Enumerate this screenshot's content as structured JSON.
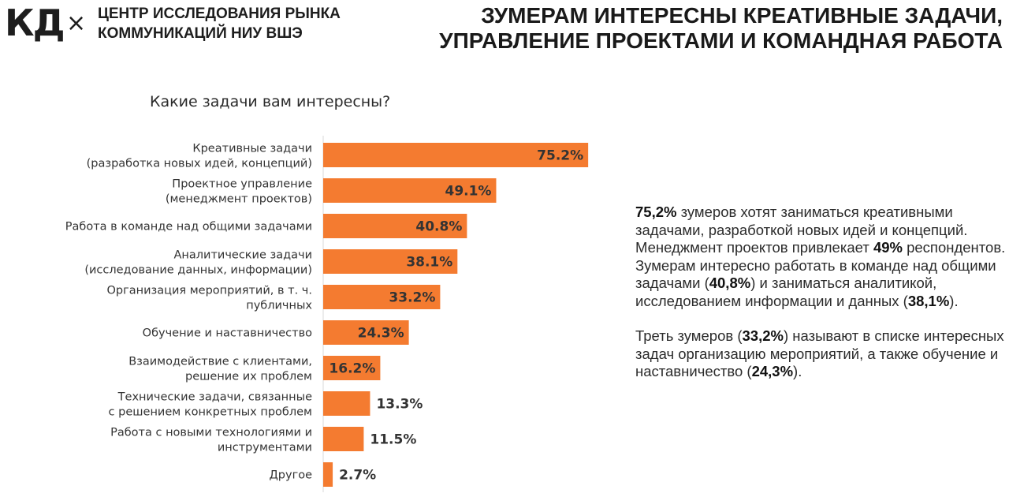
{
  "header": {
    "logo": "КД",
    "cross": "×",
    "org_line1": "ЦЕНТР ИССЛЕДОВАНИЯ РЫНКА",
    "org_line2": "КОММУНИКАЦИЙ НИУ ВШЭ",
    "title_line1": "ЗУМЕРАМ ИНТЕРЕСНЫ КРЕАТИВНЫЕ ЗАДАЧИ,",
    "title_line2": "УПРАВЛЕНИЕ ПРОЕКТАМИ И КОМАНДНАЯ РАБОТА"
  },
  "colors": {
    "bar": "#f47b30",
    "axis": "#d9d9d9",
    "text": "#333333"
  },
  "chart_data": {
    "type": "bar",
    "orientation": "horizontal",
    "title": "Какие задачи вам интересны?",
    "xlabel": "",
    "ylabel": "",
    "xlim": [
      0,
      100
    ],
    "categories": [
      [
        "Креативные задачи",
        "(разработка новых идей, концепций)"
      ],
      [
        "Проектное управление",
        "(менеджмент проектов)"
      ],
      [
        "Работа в команде над общими задачами"
      ],
      [
        "Аналитические задачи",
        "(исследование данных, информации)"
      ],
      [
        "Организация мероприятий, в т. ч.",
        "публичных"
      ],
      [
        "Обучение и наставничество"
      ],
      [
        "Взаимодействие с клиентами,",
        "решение их проблем"
      ],
      [
        "Технические задачи, связанные",
        "с решением конкретных проблем"
      ],
      [
        "Работа с новыми технологиями и",
        "инструментами"
      ],
      [
        "Другое"
      ]
    ],
    "values": [
      75.2,
      49.1,
      40.8,
      38.1,
      33.2,
      24.3,
      16.2,
      13.3,
      11.5,
      2.7
    ],
    "value_labels": [
      "75.2%",
      "49.1%",
      "40.8%",
      "38.1%",
      "33.2%",
      "24.3%",
      "16.2%",
      "13.3%",
      "11.5%",
      "2.7%"
    ]
  },
  "summary": {
    "p1": [
      {
        "t": "75,2%",
        "b": true
      },
      {
        "t": " зумеров хотят заниматься креативными задачами, разработкой новых идей и концепций. Менеджмент проектов привлекает ",
        "b": false
      },
      {
        "t": "49%",
        "b": true
      },
      {
        "t": " респондентов. Зумерам интересно работать в команде над общими задачами (",
        "b": false
      },
      {
        "t": "40,8%",
        "b": true
      },
      {
        "t": ") и заниматься аналитикой, исследованием информации и данных (",
        "b": false
      },
      {
        "t": "38,1%",
        "b": true
      },
      {
        "t": ").",
        "b": false
      }
    ],
    "p2": [
      {
        "t": "Треть зумеров (",
        "b": false
      },
      {
        "t": "33,2%",
        "b": true
      },
      {
        "t": ") называют в списке интересных задач организацию мероприятий, а также обучение и наставничество (",
        "b": false
      },
      {
        "t": "24,3%",
        "b": true
      },
      {
        "t": ").",
        "b": false
      }
    ]
  }
}
